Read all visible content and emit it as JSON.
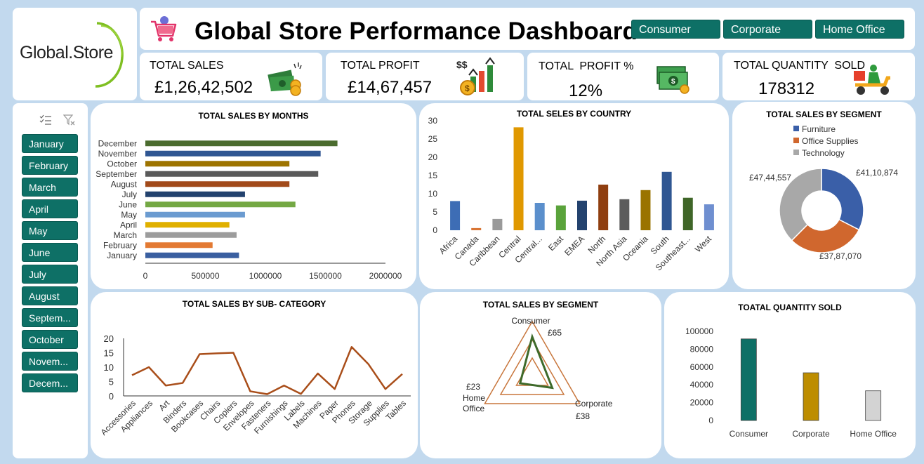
{
  "brand": {
    "name": "Global.Store"
  },
  "header": {
    "title": "Global Store Performance Dashboard",
    "cart_icon": "shopping-cart-icon"
  },
  "segment_filter": [
    "Consumer",
    "Corporate",
    "Home Office"
  ],
  "kpis": [
    {
      "label": "TOTAL SALES",
      "value": "£1,26,42,502",
      "icon": "cash-stack-icon"
    },
    {
      "label": "TOTAL PROFIT",
      "value": "£14,67,457",
      "icon": "profit-arrows-icon"
    },
    {
      "label": "TOTAL  PROFIT %",
      "value": "12%",
      "icon": "banknotes-icon"
    },
    {
      "label": "TOTAL QUANTITY  SOLD",
      "value": "178312",
      "icon": "delivery-scooter-icon"
    }
  ],
  "month_slicer": {
    "items": [
      "January",
      "February",
      "March",
      "April",
      "May",
      "June",
      "July",
      "August",
      "Septem...",
      "October",
      "Novem...",
      "Decem..."
    ]
  },
  "colors": {
    "teal": "#0e7066",
    "olive": "#bd8d00",
    "gray": "#d3d3d3",
    "brown": "#a94e1a"
  },
  "chart_data": [
    {
      "id": "sales_by_month",
      "type": "bar",
      "orientation": "horizontal",
      "title": "TOTAL SALES BY MONTHS",
      "categories": [
        "January",
        "February",
        "March",
        "April",
        "May",
        "June",
        "July",
        "August",
        "September",
        "October",
        "November",
        "December"
      ],
      "values": [
        780000,
        560000,
        760000,
        700000,
        830000,
        1250000,
        830000,
        1200000,
        1440000,
        1200000,
        1460000,
        1600000
      ],
      "colors": [
        "#3a5fa0",
        "#e37a33",
        "#9c9c9c",
        "#e0b000",
        "#6b9bd0",
        "#74a844",
        "#23426e",
        "#a24a1a",
        "#5a5a5a",
        "#9e7400",
        "#2f5692",
        "#4b6c2f"
      ],
      "xlim": [
        0,
        2000000
      ],
      "xticks": [
        "0",
        "500000",
        "1000000",
        "1500000",
        "2000000"
      ]
    },
    {
      "id": "sales_by_country",
      "type": "bar",
      "title": "TOTAL SELES BY COUNTRY",
      "categories": [
        "Africa",
        "Canada",
        "Caribbean",
        "Central",
        "Central...",
        "East",
        "EMEA",
        "North",
        "North Asia",
        "Oceania",
        "South",
        "Southeast...",
        "West"
      ],
      "values": [
        8,
        0.6,
        3.1,
        28.2,
        7.5,
        6.8,
        8.1,
        12.5,
        8.5,
        11,
        16,
        8.9,
        7.1
      ],
      "colors": [
        "#3d6db5",
        "#d97534",
        "#9a9a9a",
        "#e09800",
        "#5b8fcc",
        "#5aa33b",
        "#23426e",
        "#8f3e10",
        "#5c5c5c",
        "#9a7300",
        "#2f5692",
        "#3f6628",
        "#6f8fd0"
      ],
      "ylim": [
        0,
        30
      ],
      "yticks": [
        "0",
        "5",
        "10",
        "15",
        "20",
        "25",
        "30"
      ]
    },
    {
      "id": "sales_by_segment_pie",
      "type": "pie",
      "donut": true,
      "title": "TOTAL SALES BY SEGMENT",
      "legend_position": "top",
      "series": [
        {
          "name": "Furniture",
          "value": 4110874,
          "label": "£41,10,874",
          "color": "#3a5fa8"
        },
        {
          "name": "Office Supplies",
          "value": 3787070,
          "label": "£37,87,070",
          "color": "#d0672e"
        },
        {
          "name": "Technology",
          "value": 4744557,
          "label": "£47,44,557",
          "color": "#a8a8a8"
        }
      ]
    },
    {
      "id": "sales_by_subcategory",
      "type": "line",
      "title": "TOTAL SALES BY SUB- CATEGORY",
      "categories": [
        "Accessories",
        "Appliances",
        "Art",
        "Binders",
        "Bookcases",
        "Chairs",
        "Copiers",
        "Envelopes",
        "Fasteners",
        "Furnishings",
        "Labels",
        "Machines",
        "Paper",
        "Phones",
        "Storage",
        "Supplies",
        "Tables"
      ],
      "values": [
        7.2,
        10,
        3.6,
        4.5,
        14.5,
        14.8,
        15,
        1.6,
        0.6,
        3.6,
        0.7,
        7.8,
        2.4,
        17,
        11,
        2.4,
        7.6
      ],
      "ylim": [
        0,
        20
      ],
      "yticks": [
        "0",
        "5",
        "10",
        "15",
        "20"
      ],
      "color": "#a94e1a"
    },
    {
      "id": "sales_by_segment_radar",
      "type": "radar",
      "title": "TOTAL SALES BY SEGMENT",
      "categories": [
        "Consumer",
        "Corporate",
        "Home Office"
      ],
      "axis_labels": [
        "Consumer",
        "Corporate",
        "Home\nOffice"
      ],
      "values": [
        65,
        38,
        23
      ],
      "value_labels": [
        "£65",
        "£38",
        "£23"
      ],
      "rmax": 90,
      "ring_values": [
        30,
        60,
        90
      ]
    },
    {
      "id": "quantity_sold",
      "type": "bar",
      "title": "TOATAL QUANTITY SOLD",
      "categories": [
        "Consumer",
        "Corporate",
        "Home Office"
      ],
      "values": [
        91500,
        53500,
        33300
      ],
      "colors": [
        "#0e7066",
        "#bd8d00",
        "#d3d3d3"
      ],
      "ylim": [
        0,
        100000
      ],
      "yticks": [
        "0",
        "20000",
        "40000",
        "60000",
        "80000",
        "100000"
      ]
    }
  ]
}
